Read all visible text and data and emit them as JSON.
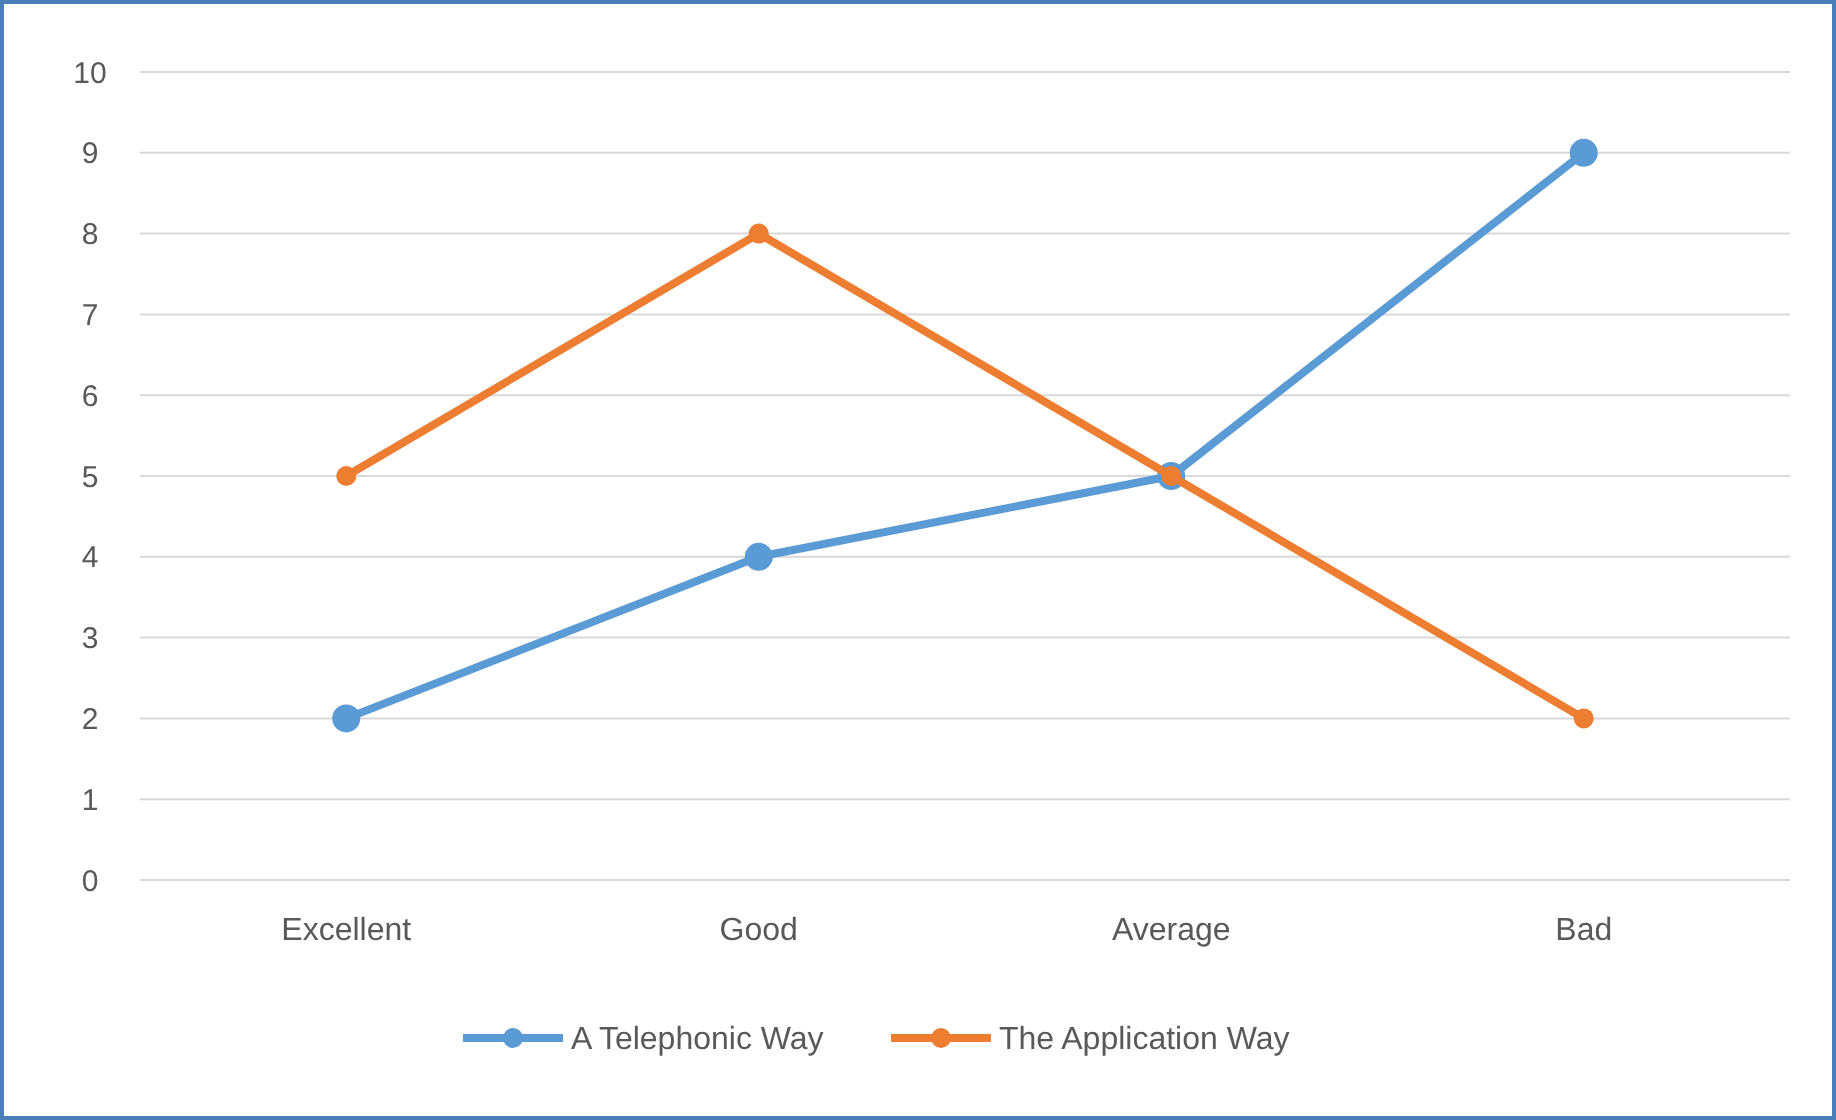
{
  "chart_data": {
    "type": "line",
    "categories": [
      "Excellent",
      "Good",
      "Average",
      "Bad"
    ],
    "series": [
      {
        "name": "A Telephonic Way",
        "color": "#5b9bd5",
        "values": [
          2,
          4,
          5,
          9
        ]
      },
      {
        "name": "The Application Way",
        "color": "#ed7d31",
        "values": [
          5,
          8,
          5,
          2
        ]
      }
    ],
    "ylim": [
      0,
      10
    ],
    "yticks": [
      0,
      1,
      2,
      3,
      4,
      5,
      6,
      7,
      8,
      9,
      10
    ],
    "grid": "y",
    "legend": "bottom",
    "marker": "circle",
    "line_style": "solid"
  }
}
